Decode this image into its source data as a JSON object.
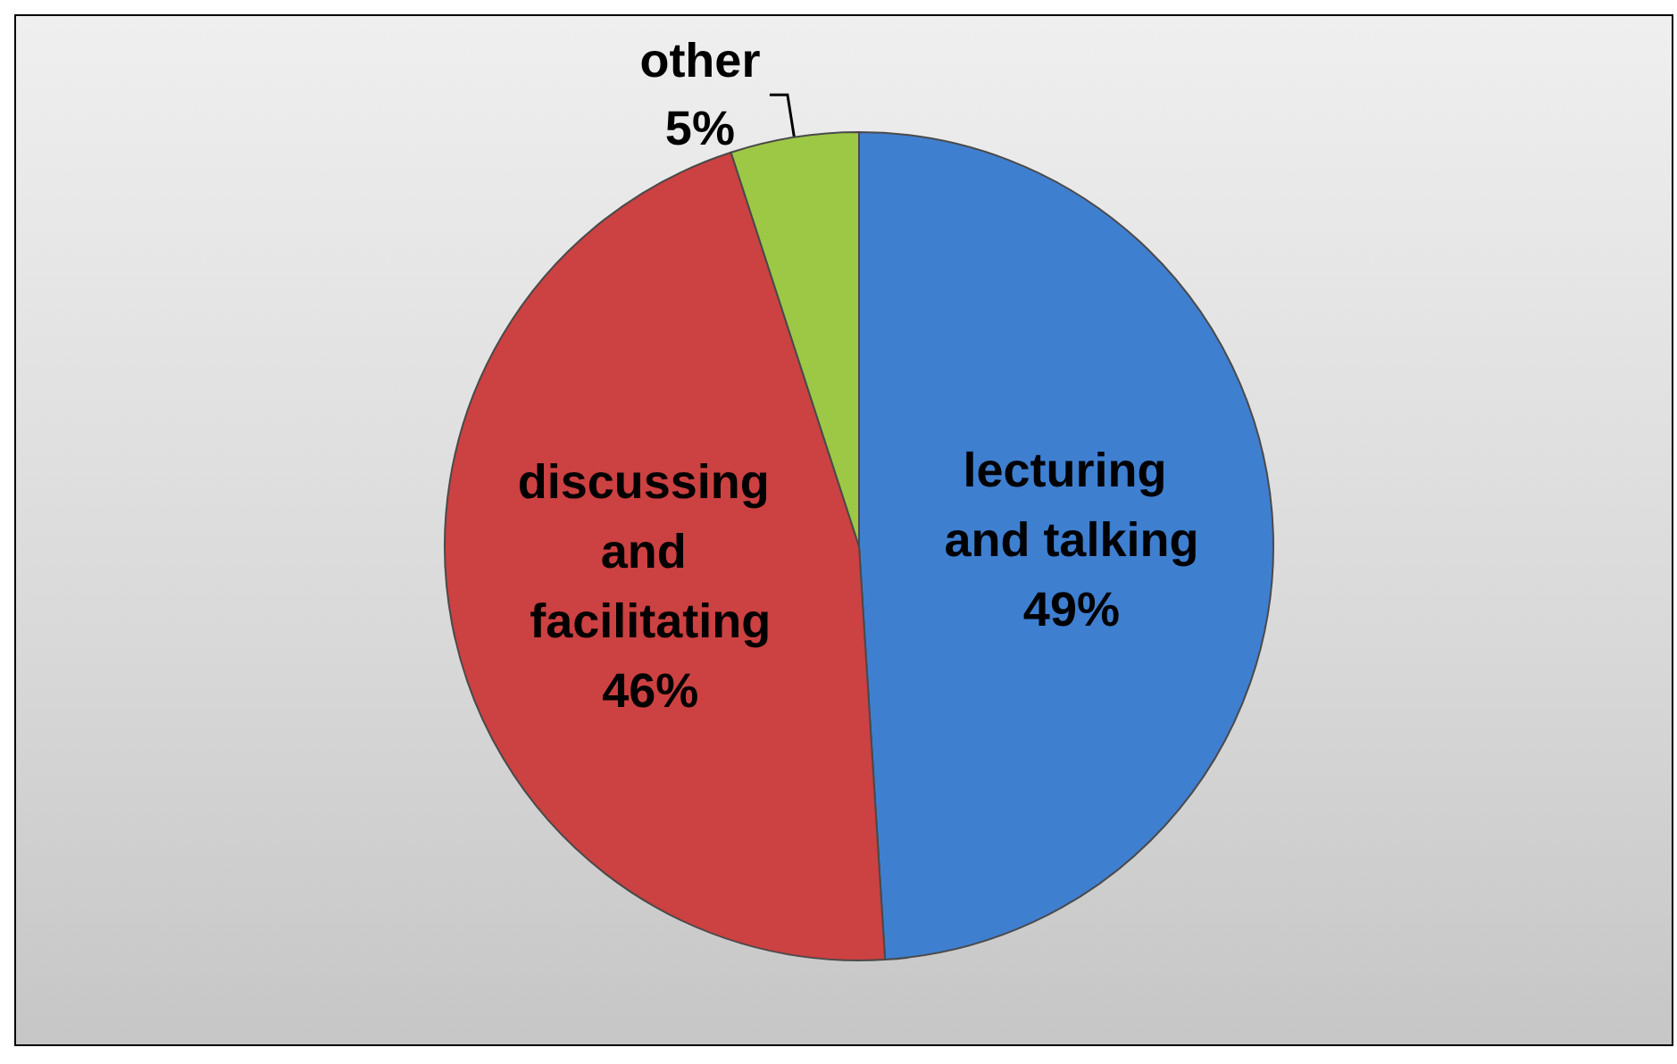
{
  "chart_data": {
    "type": "pie",
    "categories": [
      "lecturing and talking",
      "discussing and facilitating",
      "other"
    ],
    "values": [
      49,
      46,
      5
    ],
    "value_labels": [
      "49%",
      "46%",
      "5%"
    ],
    "colors": [
      "#3f7fd0",
      "#cc4141",
      "#9dc846"
    ]
  }
}
